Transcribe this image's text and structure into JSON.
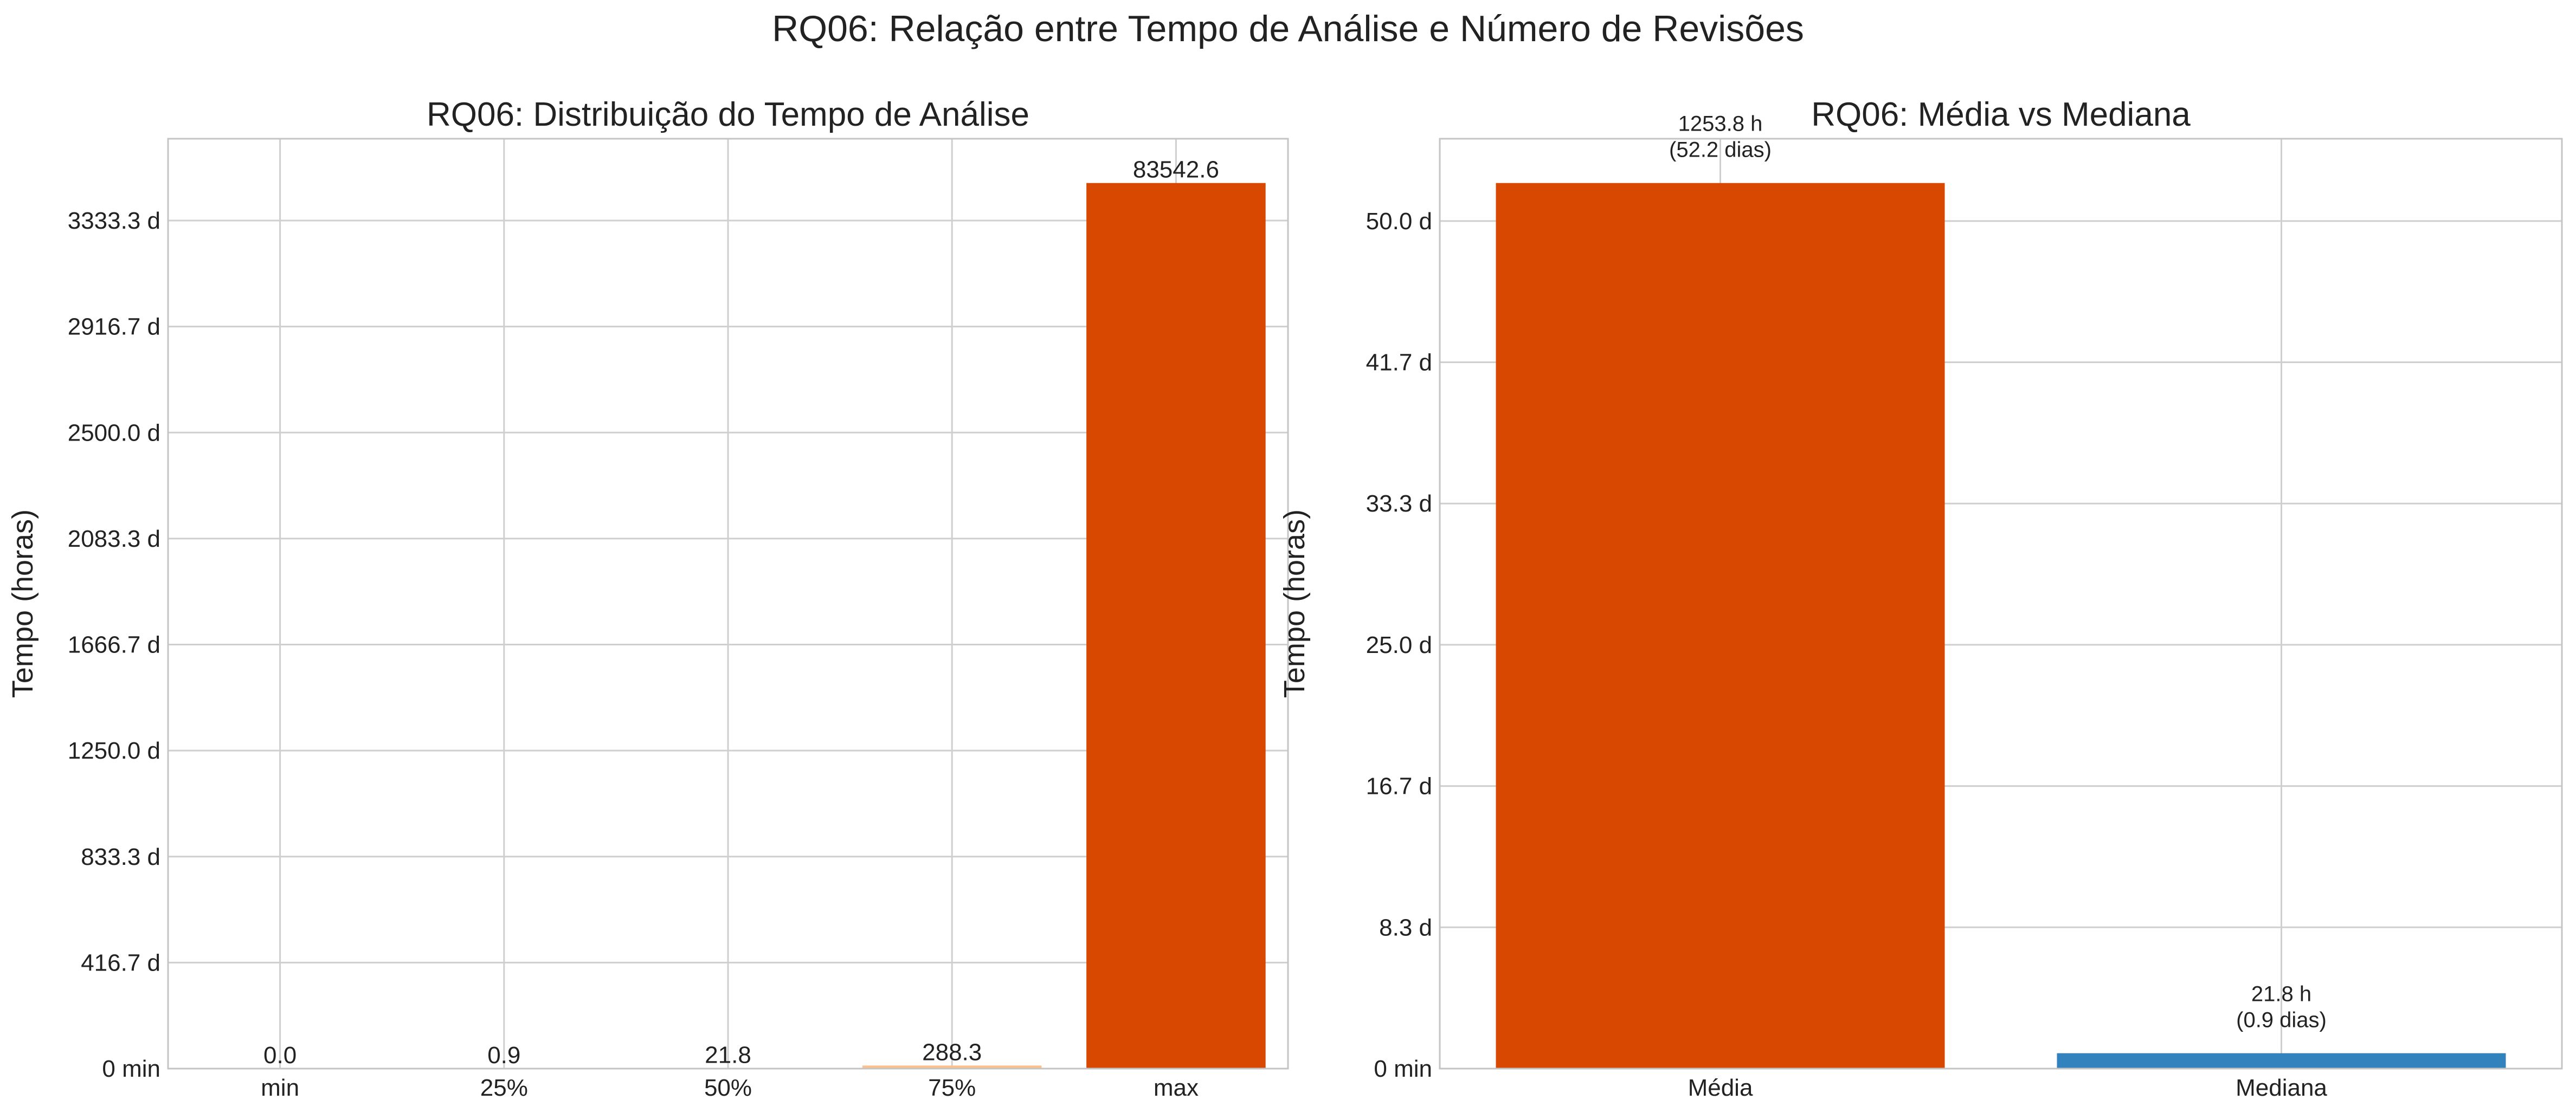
{
  "figure": {
    "title": "RQ06: Relação entre Tempo de Análise e Número de Revisões"
  },
  "chart_data": [
    {
      "type": "bar",
      "title": "RQ06: Distribuição do Tempo de Análise",
      "xlabel": "",
      "ylabel": "Tempo (horas)",
      "categories": [
        "min",
        "25%",
        "50%",
        "75%",
        "max"
      ],
      "values": [
        0.0,
        0.9,
        21.8,
        288.3,
        83542.6
      ],
      "data_labels": [
        "0.0",
        "0.9",
        "21.8",
        "288.3",
        "83542.6"
      ],
      "ylim": [
        0,
        87719.7
      ],
      "y_ticks": [
        0,
        10000,
        20000,
        30000,
        40000,
        50000,
        60000,
        70000,
        80000
      ],
      "y_tick_labels": [
        "0 min",
        "416.7 d",
        "833.3 d",
        "1250.0 d",
        "1666.7 d",
        "2083.3 d",
        "2500.0 d",
        "2916.7 d",
        "3333.3 d"
      ],
      "colors": [
        "#fdf0dd",
        "#fde3c3",
        "#fdd3a5",
        "#fdc08a",
        "#d94801"
      ],
      "grid": true
    },
    {
      "type": "bar",
      "title": "RQ06: Média vs Mediana",
      "xlabel": "",
      "ylabel": "Tempo (horas)",
      "categories": [
        "Média",
        "Mediana"
      ],
      "values": [
        1253.8,
        21.8
      ],
      "data_labels": [
        [
          "1253.8 h",
          "(52.2 dias)"
        ],
        [
          "21.8 h",
          "(0.9 dias)"
        ]
      ],
      "ylim": [
        0,
        1316.5
      ],
      "y_ticks": [
        0,
        200,
        400,
        600,
        800,
        1000,
        1200
      ],
      "y_tick_labels": [
        "0 min",
        "8.3 d",
        "16.7 d",
        "25.0 d",
        "33.3 d",
        "41.7 d",
        "50.0 d"
      ],
      "colors": [
        "#d94801",
        "#3182bd"
      ],
      "grid": true
    }
  ]
}
